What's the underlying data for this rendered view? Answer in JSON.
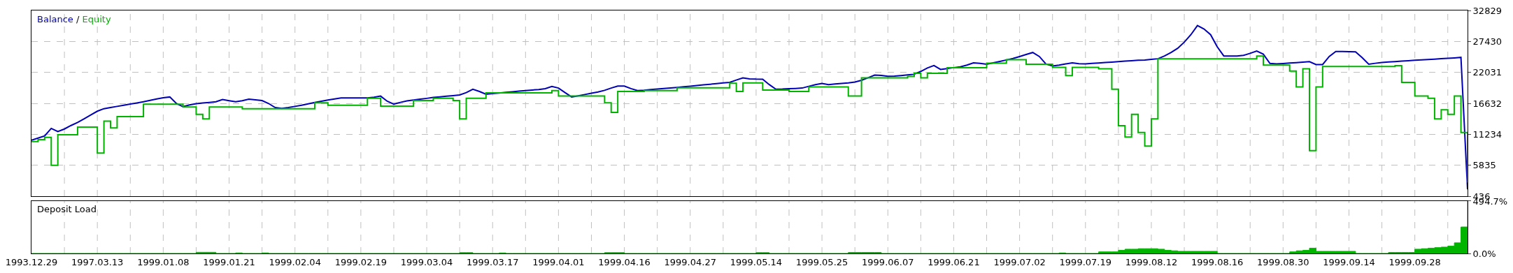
{
  "chart_data": [
    {
      "type": "line",
      "legend": "top left",
      "grid": true,
      "tick_labels": "y",
      "annotations": [
        "/"
      ],
      "categories": [
        "1993.12.29",
        null,
        null,
        null,
        null,
        null,
        null,
        null,
        null,
        null,
        "1997.03.13",
        null,
        null,
        null,
        null,
        null,
        null,
        null,
        null,
        null,
        "1999.01.08",
        null,
        null,
        null,
        null,
        null,
        null,
        null,
        null,
        null,
        "1999.01.21",
        null,
        null,
        null,
        null,
        null,
        null,
        null,
        null,
        null,
        "1999.02.04",
        null,
        null,
        null,
        null,
        null,
        null,
        null,
        null,
        null,
        "1999.02.19",
        null,
        null,
        null,
        null,
        null,
        null,
        null,
        null,
        null,
        "1999.03.04",
        null,
        null,
        null,
        null,
        null,
        null,
        null,
        null,
        null,
        "1999.03.17",
        null,
        null,
        null,
        null,
        null,
        null,
        null,
        null,
        null,
        "1999.04.01",
        null,
        null,
        null,
        null,
        null,
        null,
        null,
        null,
        null,
        "1999.04.16",
        null,
        null,
        null,
        null,
        null,
        null,
        null,
        null,
        null,
        "1999.04.27",
        null,
        null,
        null,
        null,
        null,
        null,
        null,
        null,
        null,
        "1999.05.14",
        null,
        null,
        null,
        null,
        null,
        null,
        null,
        null,
        null,
        "1999.05.25",
        null,
        null,
        null,
        null,
        null,
        null,
        null,
        null,
        null,
        "1999.06.07",
        null,
        null,
        null,
        null,
        null,
        null,
        null,
        null,
        null,
        "1999.06.21",
        null,
        null,
        null,
        null,
        null,
        null,
        null,
        null,
        null,
        "1999.07.02",
        null,
        null,
        null,
        null,
        null,
        null,
        null,
        null,
        null,
        "1999.07.19",
        null,
        null,
        null,
        null,
        null,
        null,
        null,
        null,
        null,
        "1999.08.12",
        null,
        null,
        null,
        null,
        null,
        null,
        null,
        null,
        null,
        "1999.08.16",
        null,
        null,
        null,
        null,
        null,
        null,
        null,
        null,
        null,
        "1999.08.30",
        null,
        null,
        null,
        null,
        null,
        null,
        null,
        null,
        null,
        "1999.09.14",
        null,
        null,
        null,
        null,
        null,
        null,
        null,
        null,
        null,
        "1999.09.28",
        null,
        null,
        null,
        null,
        null,
        null,
        null,
        null
      ],
      "ylim": [
        436,
        32829
      ],
      "yticks": [
        436,
        5835,
        11234,
        16632,
        22031,
        27430,
        32829
      ],
      "series": [
        {
          "name": "Balance",
          "color": "#0000b4",
          "values": [
            10200,
            10570,
            10940,
            12265,
            11710,
            12160,
            12770,
            13300,
            13950,
            14600,
            15260,
            15700,
            15900,
            16100,
            16300,
            16500,
            16700,
            16900,
            17150,
            17400,
            17600,
            17740,
            16600,
            16050,
            16350,
            16570,
            16700,
            16800,
            16900,
            17300,
            17100,
            16900,
            17100,
            17350,
            17250,
            17110,
            16600,
            15900,
            15750,
            15900,
            16100,
            16300,
            16550,
            16790,
            17000,
            17200,
            17400,
            17590,
            17590,
            17590,
            17590,
            17590,
            17700,
            17900,
            17000,
            16500,
            16800,
            17050,
            17200,
            17350,
            17500,
            17670,
            17760,
            17870,
            17980,
            18100,
            18500,
            19090,
            18700,
            18220,
            18330,
            18440,
            18550,
            18650,
            18750,
            18850,
            18950,
            19050,
            19200,
            19570,
            19300,
            18500,
            17740,
            17950,
            18170,
            18390,
            18610,
            18900,
            19300,
            19650,
            19650,
            19200,
            18860,
            18930,
            19030,
            19120,
            19210,
            19300,
            19410,
            19520,
            19630,
            19740,
            19850,
            19960,
            20070,
            20180,
            20290,
            20700,
            21080,
            20900,
            20850,
            20840,
            19900,
            19090,
            19120,
            19180,
            19230,
            19300,
            19600,
            19900,
            20100,
            19900,
            20000,
            20100,
            20200,
            20350,
            20650,
            21100,
            21550,
            21500,
            21350,
            21380,
            21480,
            21600,
            21700,
            22200,
            22800,
            23220,
            22550,
            22700,
            22860,
            23000,
            23300,
            23700,
            23600,
            23460,
            23700,
            23950,
            24200,
            24450,
            24800,
            25150,
            25500,
            24800,
            23500,
            23150,
            23300,
            23500,
            23700,
            23550,
            23520,
            23600,
            23680,
            23760,
            23830,
            23910,
            23990,
            24060,
            24140,
            24180,
            24300,
            24410,
            24900,
            25500,
            26240,
            27300,
            28600,
            30200,
            29600,
            28600,
            26500,
            24890,
            24890,
            24890,
            25000,
            25350,
            25750,
            25200,
            23600,
            23500,
            23580,
            23660,
            23740,
            23820,
            23900,
            23400,
            23400,
            24800,
            25680,
            25660,
            25630,
            25600,
            24600,
            23460,
            23620,
            23750,
            23850,
            23920,
            24000,
            24070,
            24140,
            24210,
            24280,
            24350,
            24420,
            24490,
            24560,
            24650,
            1625
          ]
        },
        {
          "name": "Equity",
          "color": "#00b400",
          "type": "step",
          "values": [
            9960,
            10300,
            10700,
            5830,
            11150,
            11150,
            11150,
            12500,
            12500,
            12500,
            7970,
            13530,
            12340,
            14330,
            14330,
            14330,
            14330,
            16470,
            16470,
            16470,
            16470,
            16470,
            16470,
            16000,
            16000,
            14730,
            13930,
            16000,
            16000,
            16000,
            16000,
            16000,
            15680,
            15680,
            15680,
            15680,
            15680,
            15680,
            15680,
            15680,
            15680,
            15680,
            15680,
            16710,
            16710,
            16310,
            16310,
            16310,
            16310,
            16310,
            16310,
            17510,
            17510,
            16150,
            16150,
            16150,
            16150,
            16150,
            17110,
            17110,
            17110,
            17510,
            17510,
            17510,
            17110,
            13930,
            17510,
            17510,
            17510,
            18460,
            18460,
            18460,
            18460,
            18460,
            18460,
            18460,
            18460,
            18460,
            18460,
            18860,
            17900,
            17900,
            17900,
            17900,
            17900,
            17900,
            17900,
            16710,
            15040,
            18700,
            18700,
            18700,
            18700,
            18860,
            18860,
            18860,
            18860,
            18860,
            19330,
            19330,
            19330,
            19330,
            19330,
            19330,
            19330,
            19330,
            20130,
            18700,
            20200,
            20200,
            20200,
            18940,
            18940,
            18940,
            18940,
            18700,
            18700,
            18700,
            19490,
            19490,
            19490,
            19490,
            19490,
            19490,
            17900,
            17900,
            21080,
            21080,
            21080,
            21080,
            21080,
            21080,
            21080,
            21320,
            21870,
            21080,
            21870,
            21870,
            21870,
            22830,
            22830,
            22830,
            22830,
            22830,
            22830,
            23620,
            23620,
            23620,
            24250,
            24250,
            24250,
            23460,
            23460,
            23460,
            23460,
            22910,
            22910,
            21480,
            22910,
            22910,
            22910,
            22910,
            22670,
            22670,
            19090,
            12740,
            10750,
            14730,
            11550,
            9170,
            13930,
            24410,
            24410,
            24410,
            24410,
            24410,
            24410,
            24410,
            24410,
            24410,
            24410,
            24410,
            24410,
            24410,
            24410,
            24410,
            24890,
            23300,
            23300,
            23300,
            23300,
            22270,
            19490,
            22670,
            8370,
            19490,
            23060,
            23060,
            23060,
            23060,
            23060,
            23060,
            23060,
            23060,
            23060,
            23060,
            23060,
            23220,
            20290,
            20290,
            17900,
            17900,
            17510,
            13930,
            15520,
            14730,
            17900,
            11550,
            2820
          ]
        }
      ]
    },
    {
      "type": "area",
      "title": "Deposit Load",
      "grid": "x",
      "categories": [
        "1993.12.29",
        null,
        null,
        null,
        null,
        null,
        null,
        null,
        null,
        null,
        "1997.03.13",
        null,
        null,
        null,
        null,
        null,
        null,
        null,
        null,
        null,
        "1999.01.08",
        null,
        null,
        null,
        null,
        null,
        null,
        null,
        null,
        null,
        "1999.01.21",
        null,
        null,
        null,
        null,
        null,
        null,
        null,
        null,
        null,
        "1999.02.04",
        null,
        null,
        null,
        null,
        null,
        null,
        null,
        null,
        null,
        "1999.02.19",
        null,
        null,
        null,
        null,
        null,
        null,
        null,
        null,
        null,
        "1999.03.04",
        null,
        null,
        null,
        null,
        null,
        null,
        null,
        null,
        null,
        "1999.03.17",
        null,
        null,
        null,
        null,
        null,
        null,
        null,
        null,
        null,
        "1999.04.01",
        null,
        null,
        null,
        null,
        null,
        null,
        null,
        null,
        null,
        "1999.04.16",
        null,
        null,
        null,
        null,
        null,
        null,
        null,
        null,
        null,
        "1999.04.27",
        null,
        null,
        null,
        null,
        null,
        null,
        null,
        null,
        null,
        "1999.05.14",
        null,
        null,
        null,
        null,
        null,
        null,
        null,
        null,
        null,
        "1999.05.25",
        null,
        null,
        null,
        null,
        null,
        null,
        null,
        null,
        null,
        "1999.06.07",
        null,
        null,
        null,
        null,
        null,
        null,
        null,
        null,
        null,
        "1999.06.21",
        null,
        null,
        null,
        null,
        null,
        null,
        null,
        null,
        null,
        "1999.07.02",
        null,
        null,
        null,
        null,
        null,
        null,
        null,
        null,
        null,
        "1999.07.19",
        null,
        null,
        null,
        null,
        null,
        null,
        null,
        null,
        null,
        "1999.08.12",
        null,
        null,
        null,
        null,
        null,
        null,
        null,
        null,
        null,
        "1999.08.16",
        null,
        null,
        null,
        null,
        null,
        null,
        null,
        null,
        null,
        "1999.08.30",
        null,
        null,
        null,
        null,
        null,
        null,
        null,
        null,
        null,
        "1999.09.14",
        null,
        null,
        null,
        null,
        null,
        null,
        null,
        null,
        null,
        "1999.09.28",
        null,
        null,
        null,
        null,
        null,
        null,
        null,
        null
      ],
      "ylim": [
        0,
        494.7
      ],
      "yticks": [
        {
          "value": 0,
          "label": "0.0%"
        },
        {
          "value": 494.7,
          "label": "494.7%"
        }
      ],
      "series": [
        {
          "color": "#00b400",
          "values": [
            0,
            0,
            0,
            0,
            0,
            0,
            0,
            0,
            0,
            0,
            0,
            0,
            0,
            0,
            0,
            0,
            0,
            0,
            0,
            0,
            0,
            0,
            0,
            0,
            0,
            11,
            11,
            11,
            0,
            0,
            0,
            5,
            0,
            0,
            0,
            5,
            0,
            0,
            0,
            0,
            0,
            0,
            0,
            0,
            0,
            0,
            0,
            0,
            0,
            0,
            0,
            0,
            0,
            0,
            0,
            0,
            0,
            0,
            0,
            0,
            0,
            0,
            0,
            0,
            0,
            8,
            8,
            0,
            0,
            0,
            0,
            5,
            0,
            0,
            0,
            0,
            0,
            0,
            0,
            0,
            0,
            0,
            0,
            0,
            0,
            0,
            0,
            8,
            8,
            8,
            0,
            0,
            0,
            0,
            0,
            0,
            0,
            0,
            0,
            0,
            0,
            0,
            0,
            0,
            0,
            0,
            0,
            0,
            0,
            0,
            8,
            8,
            0,
            0,
            0,
            0,
            0,
            0,
            0,
            0,
            0,
            0,
            0,
            0,
            10,
            10,
            10,
            10,
            10,
            0,
            0,
            0,
            0,
            0,
            0,
            0,
            0,
            0,
            0,
            0,
            0,
            0,
            0,
            0,
            0,
            0,
            0,
            0,
            0,
            0,
            0,
            0,
            0,
            0,
            0,
            0,
            5,
            0,
            0,
            0,
            0,
            0,
            15,
            15,
            15,
            30,
            40,
            40,
            45,
            45,
            45,
            40,
            30,
            25,
            20,
            20,
            20,
            20,
            20,
            20,
            0,
            0,
            0,
            0,
            0,
            0,
            0,
            0,
            0,
            0,
            0,
            15,
            25,
            30,
            50,
            20,
            20,
            20,
            20,
            20,
            20,
            0,
            0,
            0,
            0,
            0,
            10,
            10,
            10,
            10,
            40,
            45,
            50,
            55,
            60,
            70,
            100,
            250,
            494.7
          ]
        }
      ]
    }
  ]
}
